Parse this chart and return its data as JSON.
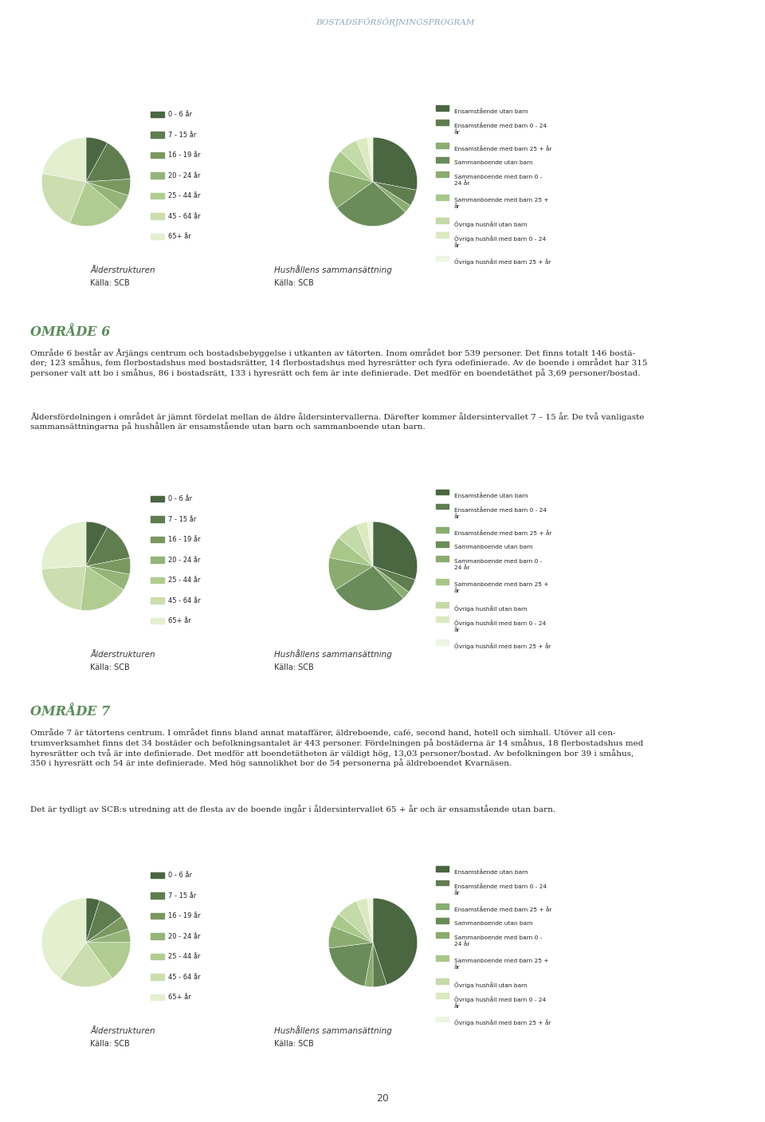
{
  "header_title": "BOSTADSFÖRSÖRJNINGSPROGRAM",
  "header_color": "#8aa5c0",
  "left_bar_color": "#5b7aad",
  "background_color": "#ffffff",
  "section6_title": "OMRÅDE 6",
  "section6_title_color": "#5b8c5a",
  "section6_text1": "Område 6 består av Årjängs centrum och bostadsbebyggelse i utkanten av tätorten. Inom området bor 539 personer. Det finns totalt 146 bostä-\nder; 123 småhus, fem flerbostadshus med bostadsrätter, 14 flerbostadshus med hyresrätter och fyra odefinierade. Av de boende i området har 315\npersoner valt att bo i småhus, 86 i bostadsrätt, 133 i hyresrätt och fem är inte definierade. Det medför en boendetäthet på 3,69 personer/bostad.",
  "section6_text2": "Åldersfördelningen i området är jämnt fördelat mellan de äldre åldersintervallerna. Därefter kommer åldersintervallet 7 – 15 år. De två vanligaste\nsammansättningarna på hushållen är ensamstående utan barn och sammanboende utan barn.",
  "section7_title": "OMRÅDE 7",
  "section7_title_color": "#5b8c5a",
  "section7_text1": "Område 7 är tätortens centrum. I området finns bland annat mataffärer, äldreboende, café, second hand, hotell och simhall. Utöver all cen-\ntrumverksamhet finns det 34 bostäder och befolkningsantalet är 443 personer. Fördelningen på bostäderna är 14 småhus, 18 flerbostadshus med\nhyresrätter och två är inte definierade. Det medför att boendetätheten är väldigt hög, 13,03 personer/bostad. Av befolkningen bor 39 i småhus,\n350 i hyresrätt och 54 är inte definierade. Med hög sannolikhet bor de 54 personerna på äldreboendet Kvarnäsen.",
  "section7_text2": "Det är tydligt av SCB:s utredning att de flesta av de boende ingår i åldersintervallet 65 + år och är ensamstående utan barn.",
  "age_colors": [
    "#4a6741",
    "#607d50",
    "#7a9860",
    "#94b478",
    "#b0cc90",
    "#ccddb0",
    "#e4efd0"
  ],
  "age_labels": [
    "0 - 6 år",
    "7 - 15 år",
    "16 - 19 år",
    "20 - 24 år",
    "25 - 44 år",
    "45 - 64 år",
    "65+ år"
  ],
  "household_colors": [
    "#4a6741",
    "#607d50",
    "#8aad72",
    "#6a8c5a",
    "#8aac70",
    "#a8c88a",
    "#c4daa8",
    "#dceac0",
    "#eef5e0"
  ],
  "household_labels": [
    "Ensamstående utan barn",
    "Ensamstående med barn 0 - 24\når",
    "Ensamstående med barn 25 + år",
    "Sammanboende utan barn",
    "Sammanboende med barn 0 -\n24 år",
    "Sammanboende med barn 25 +\når",
    "Övriga hushåll utan barn",
    "Övriga hushåll med barn 0 - 24\når",
    "Övriga hushåll med barn 25 + år"
  ],
  "pie1_area5_age_values": [
    8,
    16,
    6,
    6,
    20,
    22,
    22
  ],
  "pie2_area5_household_values": [
    28,
    6,
    3,
    28,
    14,
    8,
    7,
    4,
    2
  ],
  "pie1_area6_age_values": [
    8,
    14,
    6,
    6,
    18,
    22,
    26
  ],
  "pie2_area6_household_values": [
    30,
    5,
    3,
    28,
    12,
    8,
    8,
    4,
    2
  ],
  "pie1_area7_age_values": [
    5,
    10,
    5,
    5,
    15,
    20,
    40
  ],
  "pie2_area7_household_values": [
    45,
    5,
    3,
    20,
    8,
    5,
    8,
    4,
    2
  ],
  "label_alderstrukturen": "Ålderstrukturen",
  "label_hushallens": "Hushållens sammansättning",
  "label_kalla": "Källa: SCB",
  "page_number": "20"
}
